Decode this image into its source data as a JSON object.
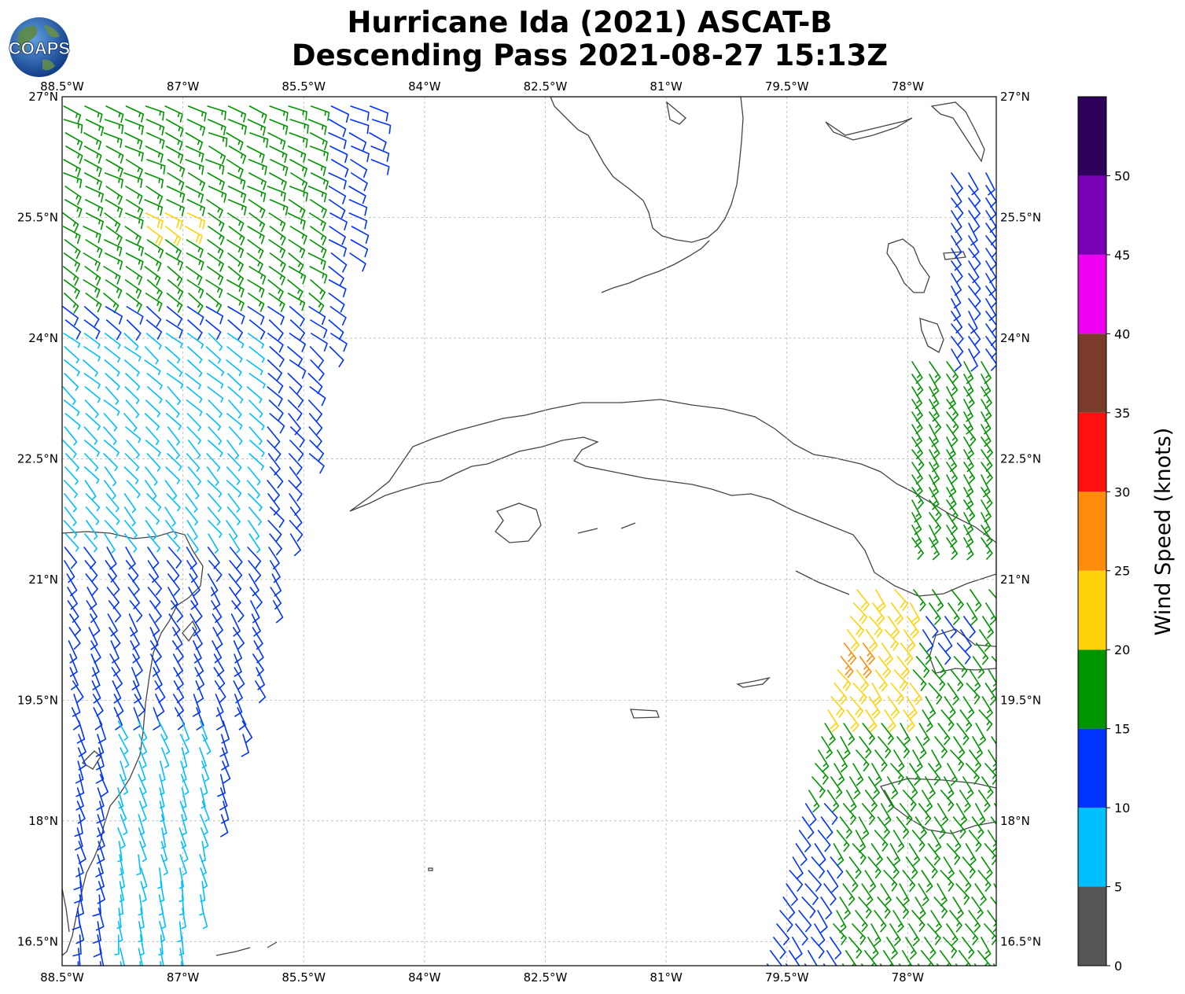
{
  "title": {
    "line1": "Hurricane Ida (2021) ASCAT-B",
    "line2": "Descending Pass 2021-08-27 15:13Z"
  },
  "logo": {
    "text": "COAPS",
    "icon": "globe-logo-icon"
  },
  "map": {
    "lon_ticks": [
      "88.5°W",
      "87°W",
      "85.5°W",
      "84°W",
      "82.5°W",
      "81°W",
      "79.5°W",
      "78°W"
    ],
    "lat_ticks": [
      "27°N",
      "25.5°N",
      "24°N",
      "22.5°N",
      "21°N",
      "19.5°N",
      "18°N",
      "16.5°N"
    ],
    "lon_range": [
      -88.5,
      -76.9
    ],
    "lat_range": [
      16.2,
      27.0
    ],
    "gridlines": true
  },
  "colorbar": {
    "label": "Wind Speed (knots)",
    "ticks": [
      "0",
      "5",
      "10",
      "15",
      "20",
      "25",
      "30",
      "35",
      "40",
      "45",
      "50"
    ],
    "bins": [
      {
        "from": 0,
        "to": 5,
        "color": "#555555"
      },
      {
        "from": 5,
        "to": 10,
        "color": "#00bfff"
      },
      {
        "from": 10,
        "to": 15,
        "color": "#0033ff"
      },
      {
        "from": 15,
        "to": 20,
        "color": "#009400"
      },
      {
        "from": 20,
        "to": 25,
        "color": "#ffd20a"
      },
      {
        "from": 25,
        "to": 30,
        "color": "#ff8c0a"
      },
      {
        "from": 30,
        "to": 35,
        "color": "#ff1010"
      },
      {
        "from": 35,
        "to": 40,
        "color": "#7a3b2a"
      },
      {
        "from": 40,
        "to": 45,
        "color": "#f000f0"
      },
      {
        "from": 45,
        "to": 50,
        "color": "#7a00b4"
      },
      {
        "from": 50,
        "to": 55,
        "color": "#2e005c"
      }
    ]
  }
}
